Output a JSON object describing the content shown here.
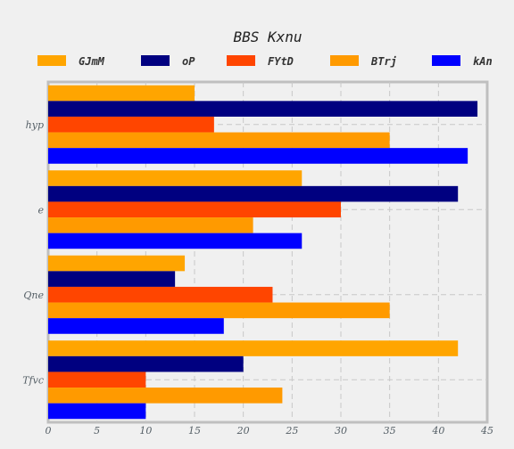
{
  "chart_data": {
    "type": "bar",
    "orientation": "horizontal",
    "title": "BBS Kxnu",
    "xlabel": "",
    "ylabel": "",
    "xlim": [
      0,
      45
    ],
    "xticks": [
      0,
      5,
      10,
      15,
      20,
      25,
      30,
      35,
      40,
      45
    ],
    "categories": [
      "Tfvc",
      "Qne",
      "e",
      "hyp"
    ],
    "grid": true,
    "legend_position": "top",
    "series": [
      {
        "name": "GJmM",
        "color": "#ffa500",
        "values": [
          42,
          14,
          26,
          15
        ]
      },
      {
        "name": "oP",
        "color": "#000080",
        "values": [
          20,
          13,
          42,
          44
        ]
      },
      {
        "name": "FYtD",
        "color": "#ff4500",
        "values": [
          10,
          23,
          30,
          17
        ]
      },
      {
        "name": "BTrj",
        "color": "#ff9a00",
        "values": [
          24,
          35,
          21,
          35
        ]
      },
      {
        "name": "kAn",
        "color": "#0000ff",
        "values": [
          10,
          18,
          26,
          43
        ]
      }
    ]
  }
}
